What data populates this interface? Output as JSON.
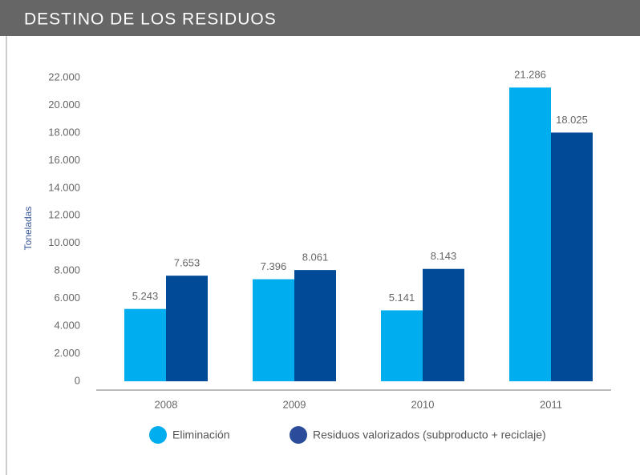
{
  "chart_data": {
    "type": "bar",
    "title": "DESTINO DE LOS RESIDUOS",
    "y_label": "Toneladas",
    "categories": [
      "2008",
      "2009",
      "2010",
      "2011"
    ],
    "series": [
      {
        "name": "Eliminación",
        "color": "#00aeef",
        "values": [
          5243,
          7396,
          5141,
          21286
        ],
        "value_labels": [
          "5.243",
          "7.396",
          "5.141",
          "21.286"
        ]
      },
      {
        "name": "Residuos valorizados (subproducto + reciclaje)",
        "color": "#004a98",
        "values": [
          7653,
          8061,
          8143,
          18025
        ],
        "value_labels": [
          "7.653",
          "8.061",
          "8.143",
          "18.025"
        ]
      }
    ],
    "ylim": [
      0,
      22000
    ],
    "yticks": [
      0,
      {
        "value": 2000,
        "label": "2.000"
      },
      {
        "value": 4000,
        "label": "4.000"
      },
      {
        "value": 6000,
        "label": "6.000"
      },
      {
        "value": 8000,
        "label": "8.000"
      },
      {
        "value": 10000,
        "label": "10.000"
      },
      {
        "value": 12000,
        "label": "12.000"
      },
      {
        "value": 14000,
        "label": "14.000"
      },
      {
        "value": 16000,
        "label": "16.000"
      },
      {
        "value": 18000,
        "label": "18.000"
      },
      {
        "value": 20000,
        "label": "20.000"
      },
      {
        "value": 22000,
        "label": "22.000"
      }
    ],
    "legend": "bottom"
  }
}
